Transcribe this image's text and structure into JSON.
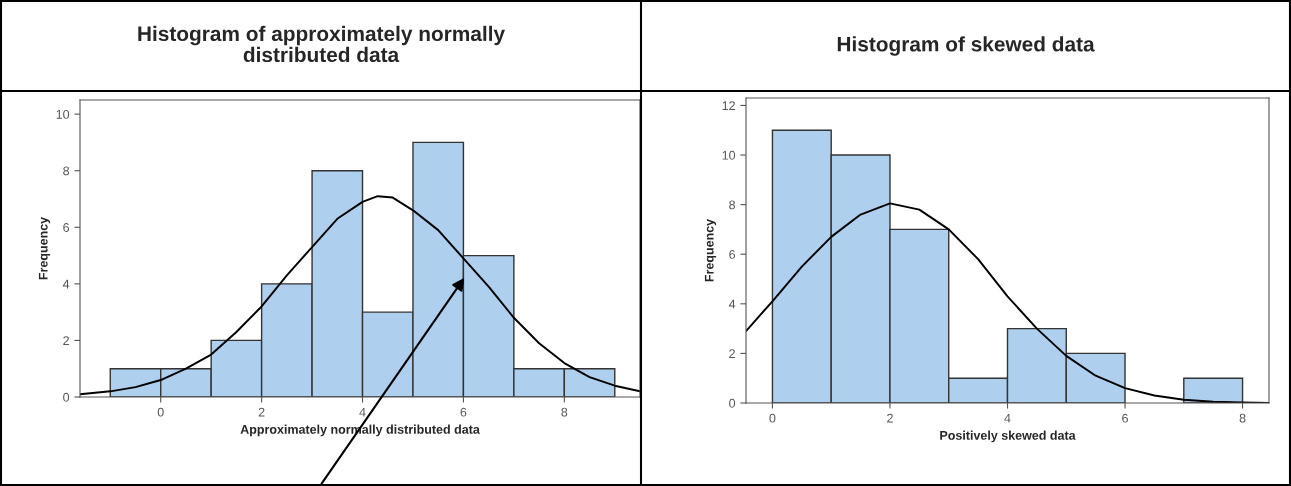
{
  "chart_data": [
    {
      "type": "histogram",
      "title": "Histogram of approximately normally\ndistributed data",
      "xlabel": "Approximately normally distributed data",
      "ylabel": "Frequency",
      "bins": [
        -1,
        0,
        1,
        2,
        3,
        4,
        5,
        6,
        7,
        8,
        9
      ],
      "values": [
        1,
        1,
        2,
        4,
        8,
        3,
        9,
        5,
        1,
        1
      ],
      "color": "#aecfee",
      "xlim": [
        -1.6,
        9.5
      ],
      "ylim": [
        0,
        10.5
      ],
      "xticks": [
        0,
        2,
        4,
        6,
        8
      ],
      "yticks": [
        0,
        2,
        4,
        6,
        8,
        10
      ],
      "series": [
        {
          "type": "line",
          "color": "#000000",
          "x": [
            -1.6,
            -1,
            -0.5,
            0,
            0.5,
            1,
            1.5,
            2,
            2.5,
            3,
            3.5,
            4,
            4.3,
            4.6,
            5,
            5.5,
            6,
            6.5,
            7,
            7.5,
            8,
            8.5,
            9,
            9.5
          ],
          "values": [
            0.1,
            0.2,
            0.35,
            0.6,
            1,
            1.5,
            2.3,
            3.2,
            4.3,
            5.3,
            6.3,
            6.9,
            7.1,
            7.05,
            6.6,
            5.9,
            4.9,
            3.9,
            2.8,
            1.9,
            1.2,
            0.7,
            0.4,
            0.2
          ]
        }
      ]
    },
    {
      "type": "histogram",
      "title": "Histogram of skewed data",
      "xlabel": "Positively skewed data",
      "ylabel": "Frequency",
      "bins": [
        0,
        1,
        2,
        3,
        4,
        5,
        6,
        7,
        8
      ],
      "values": [
        11,
        10,
        7,
        1,
        3,
        2,
        0,
        1
      ],
      "color": "#aecfee",
      "xlim": [
        -0.45,
        8.45
      ],
      "ylim": [
        0,
        12.3
      ],
      "xticks": [
        0,
        2,
        4,
        6,
        8
      ],
      "yticks": [
        0,
        2,
        4,
        6,
        8,
        10,
        12
      ],
      "series": [
        {
          "type": "line",
          "color": "#000000",
          "x": [
            -0.45,
            0,
            0.5,
            1,
            1.5,
            2,
            2.5,
            3,
            3.5,
            4,
            4.5,
            5,
            5.5,
            6,
            6.5,
            7,
            7.5,
            8,
            8.45
          ],
          "values": [
            2.9,
            4.1,
            5.5,
            6.7,
            7.6,
            8.05,
            7.8,
            7,
            5.8,
            4.3,
            3,
            1.9,
            1.1,
            0.6,
            0.3,
            0.13,
            0.05,
            0.02,
            0
          ]
        }
      ]
    }
  ]
}
